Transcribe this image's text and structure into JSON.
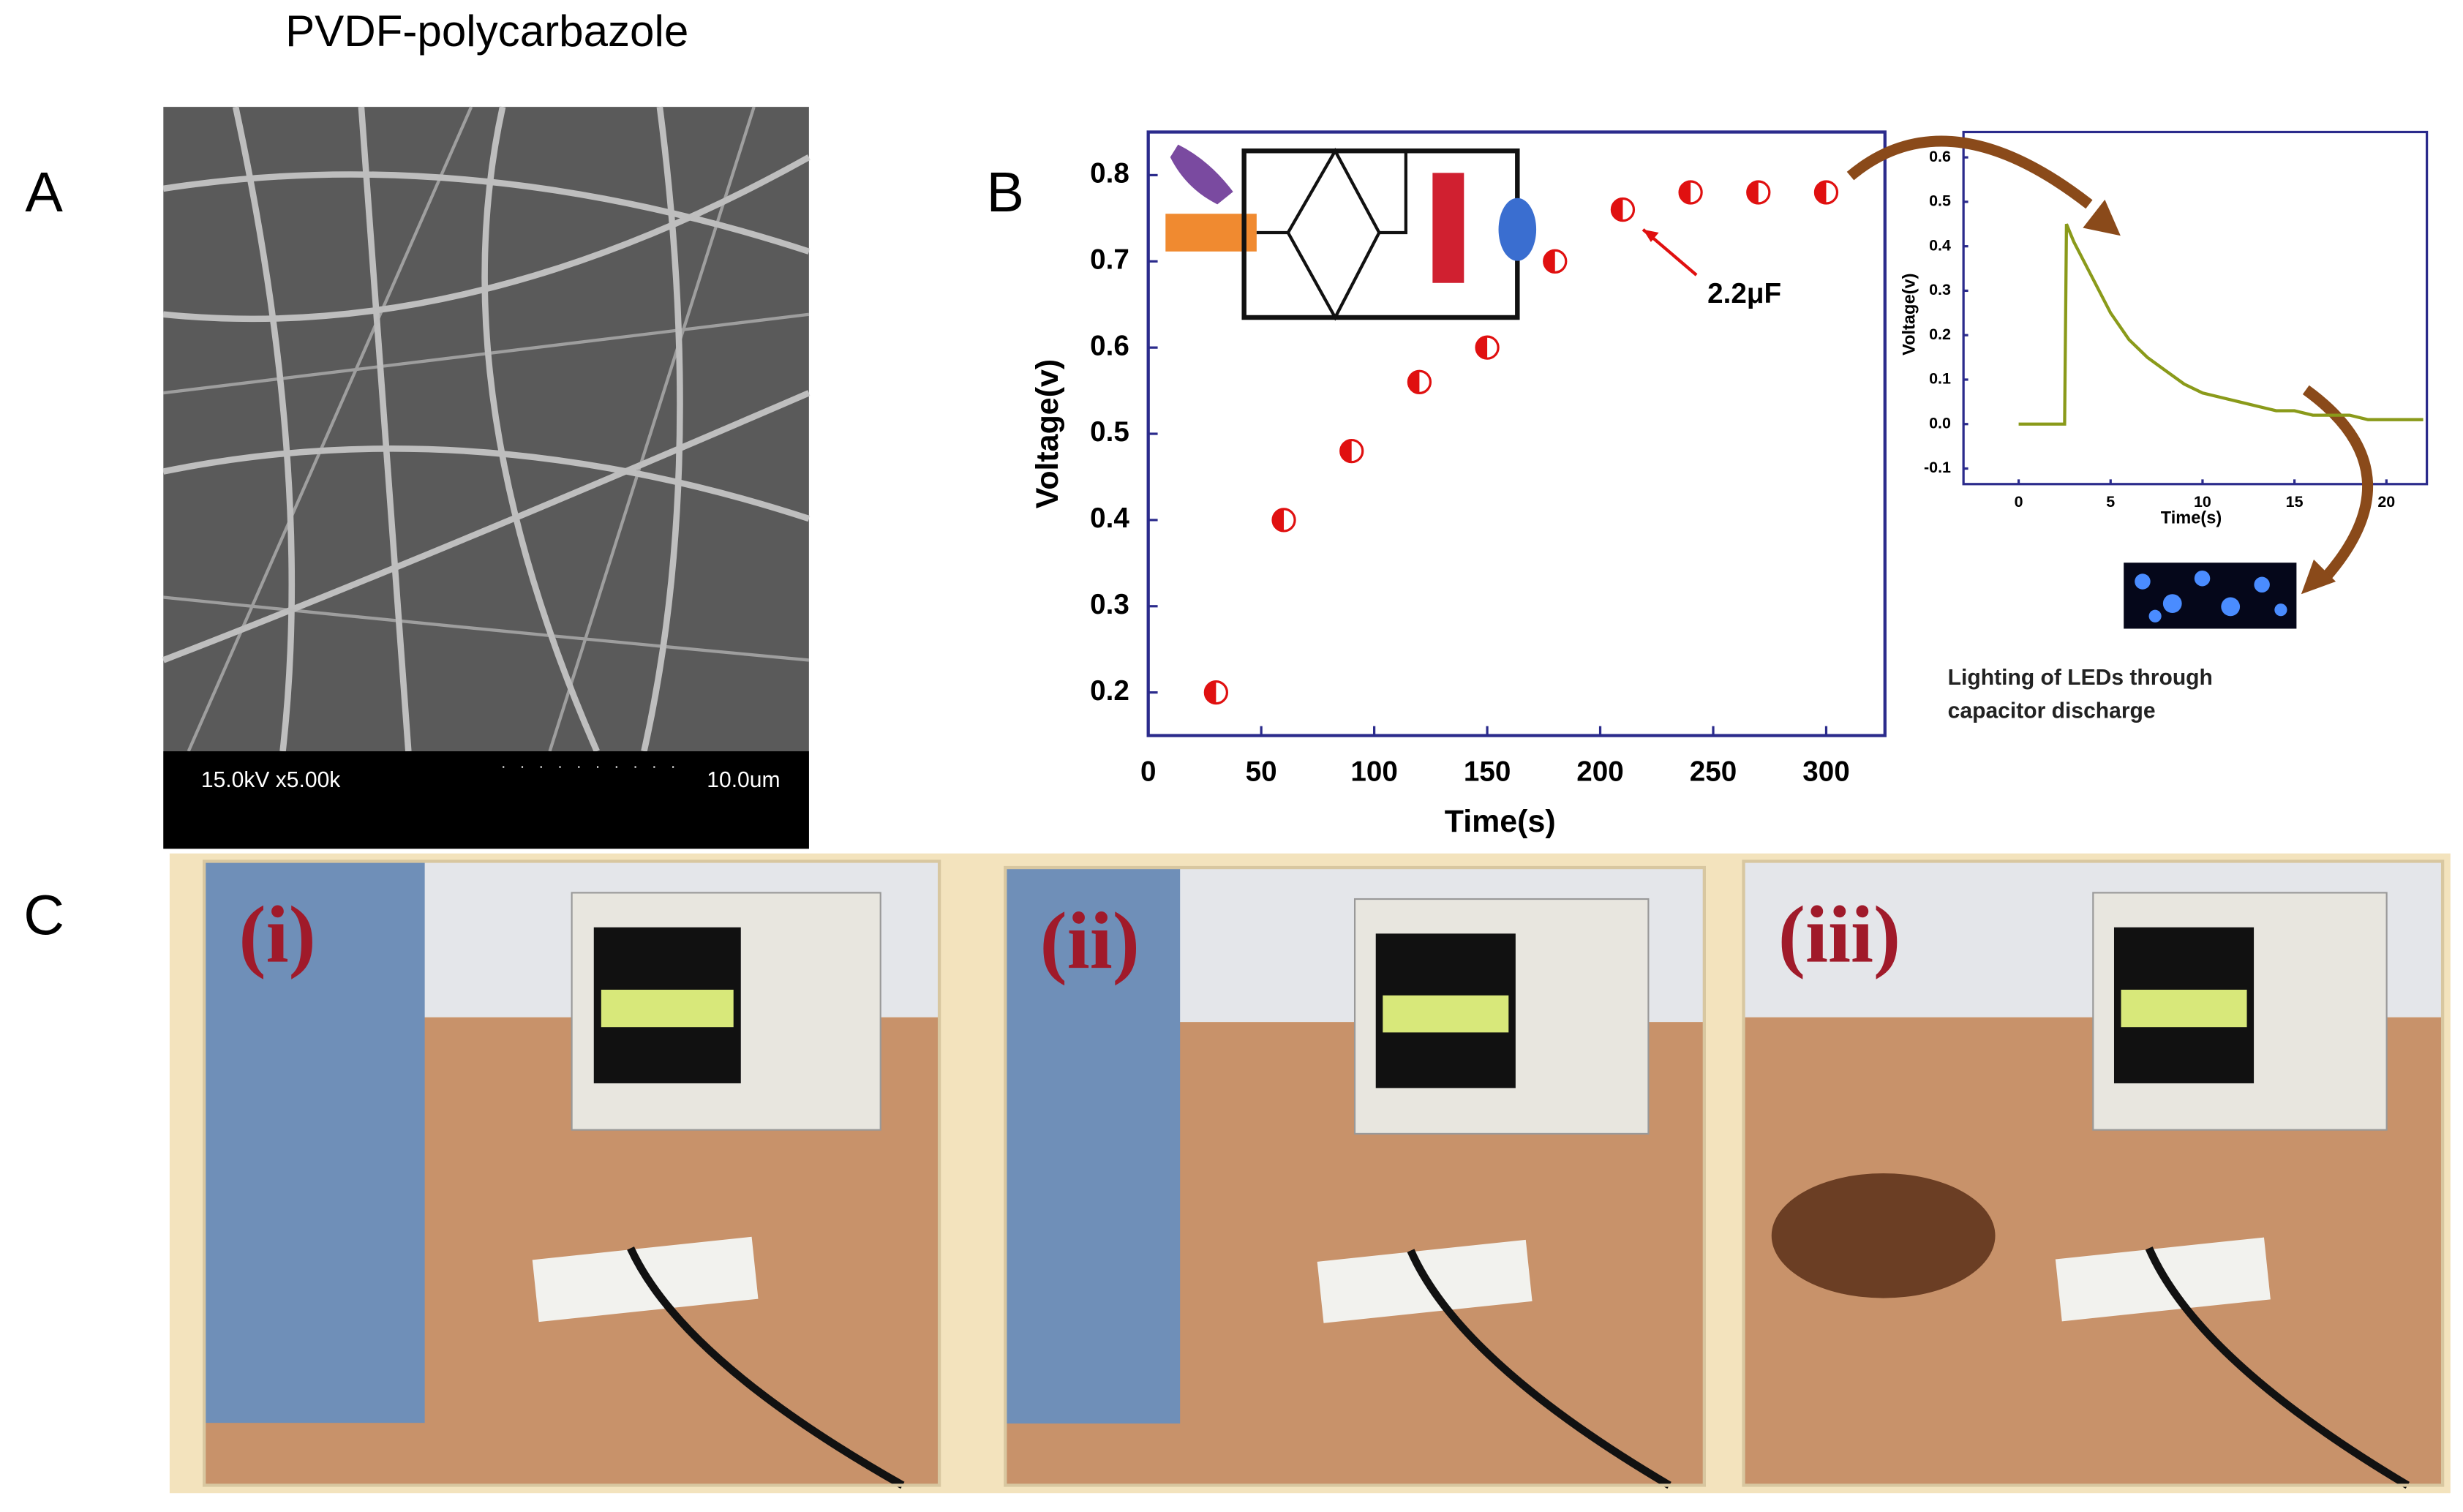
{
  "title": "PVDF-polycarbazole",
  "panel_labels": [
    "A",
    "B",
    "C"
  ],
  "sem": {
    "scale_text": "15.0kV x5.00k",
    "scale_bar": "10.0um"
  },
  "chart_data": [
    {
      "type": "scatter",
      "x_label": "Time(s)",
      "y_label": "Voltage(v)",
      "annotation": "2.2μF",
      "x": [
        30,
        60,
        90,
        120,
        150,
        180,
        210,
        240,
        270,
        300
      ],
      "values": [
        0.2,
        0.4,
        0.48,
        0.56,
        0.6,
        0.7,
        0.76,
        0.78,
        0.78,
        0.78
      ],
      "color": "#e01010",
      "xlim": [
        0,
        326
      ],
      "ylim": [
        0.15,
        0.85
      ],
      "xticks": [
        0,
        50,
        100,
        150,
        200,
        250,
        300
      ],
      "yticks": [
        0.2,
        0.3,
        0.4,
        0.5,
        0.6,
        0.7,
        0.8
      ]
    },
    {
      "type": "line",
      "x_label": "Time(s)",
      "y_label": "Voltage(v)",
      "x": [
        0,
        1,
        2,
        2.5,
        2.6,
        3,
        4,
        5,
        6,
        7,
        8,
        9,
        10,
        11,
        12,
        13,
        14,
        15,
        16,
        17,
        18,
        19,
        20,
        21,
        22
      ],
      "values": [
        0,
        0,
        0,
        0,
        0.45,
        0.41,
        0.33,
        0.25,
        0.19,
        0.15,
        0.12,
        0.09,
        0.07,
        0.06,
        0.05,
        0.04,
        0.03,
        0.03,
        0.02,
        0.02,
        0.02,
        0.01,
        0.01,
        0.01,
        0.01
      ],
      "color": "#8a9a1a",
      "xlim": [
        -3,
        22.2
      ],
      "ylim": [
        -0.135,
        0.657
      ],
      "xticks": [
        0,
        5,
        10,
        15,
        20
      ],
      "yticks": [
        -0.1,
        {
          "value": 0,
          "label": "0.0"
        },
        0.1,
        0.2,
        0.3,
        0.4,
        0.5,
        0.6
      ]
    }
  ],
  "led_caption": [
    "Lighting of LEDs through",
    "capacitor discharge"
  ],
  "photos": [
    "(i)",
    "(ii)",
    "(iii)"
  ]
}
